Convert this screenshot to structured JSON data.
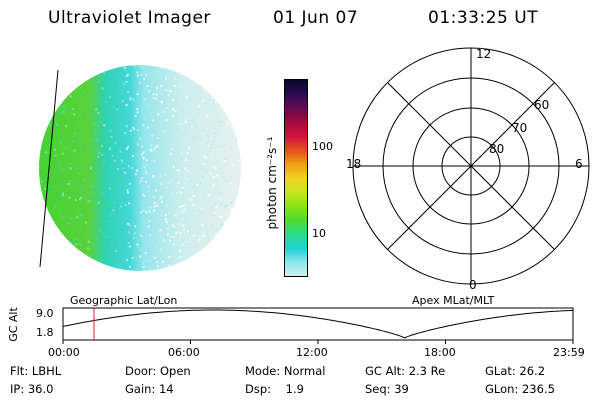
{
  "header": {
    "instrument": "Ultraviolet Imager",
    "date": "01 Jun 07",
    "time": "01:33:25 UT"
  },
  "colorbar": {
    "unit_label": "photon cm⁻²s⁻¹",
    "ticks": [
      "100",
      "10"
    ],
    "colors": [
      "#0a0a28",
      "#2a0a50",
      "#640a50",
      "#a00a3c",
      "#d2143c",
      "#e6501e",
      "#f0a014",
      "#f0d21e",
      "#c8e61e",
      "#8ce614",
      "#50dc28",
      "#28dc8c",
      "#1ed2d2",
      "#8ce6f0",
      "#d2f0f0"
    ]
  },
  "polar_grid": {
    "mlt_labels": [
      "12",
      "18",
      "6",
      "0"
    ],
    "lat_labels": [
      "60",
      "70",
      "80"
    ]
  },
  "timeline": {
    "left_label": "Geographic Lat/Lon",
    "right_label": "Apex MLat/MLT",
    "axis_title": "GC Alt",
    "y_ticks": [
      "9.0",
      "1.8"
    ],
    "x_ticks": [
      "00:00",
      "06:00",
      "12:00",
      "18:00",
      "23:59"
    ],
    "cursor_color": "#c82828"
  },
  "info": {
    "row1": {
      "flt": "Flt: LBHL",
      "door": "Door: Open",
      "mode": "Mode: Normal",
      "gcalt": "GC Alt: 2.3 Re",
      "glat": "GLat:  26.2"
    },
    "row2": {
      "ip": "IP: 36.0",
      "gain": "Gain: 14",
      "dsp": "Dsp:    1.9",
      "seq": "Seq: 39",
      "glon": "GLon: 236.5"
    }
  }
}
